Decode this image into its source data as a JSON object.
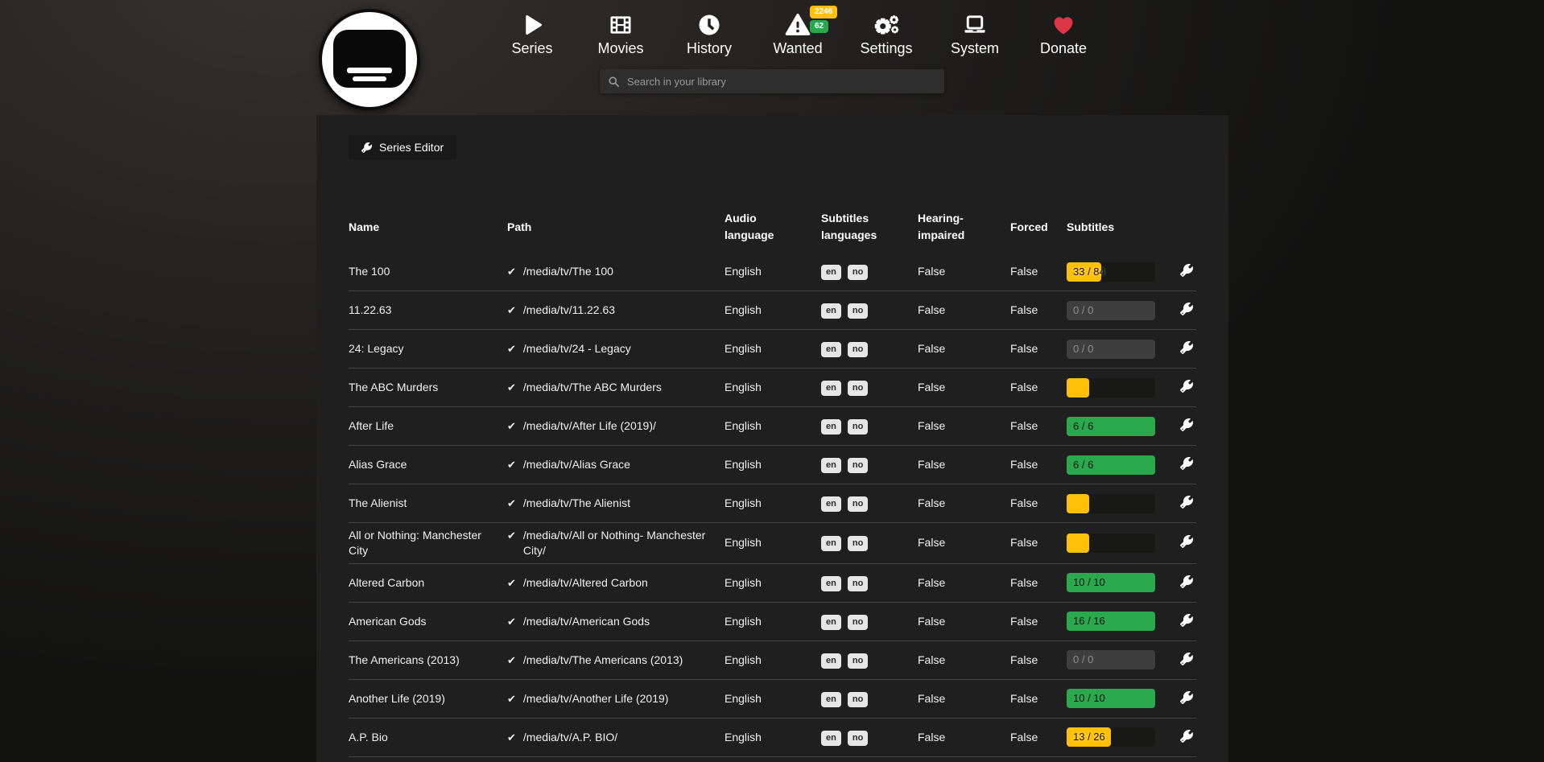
{
  "colors": {
    "warning": "#ffc107",
    "success": "#2aa84e",
    "danger": "#dc3545",
    "disabled_track": "#3e3e3e"
  },
  "nav": {
    "items": [
      {
        "slug": "series",
        "label": "Series",
        "icon": "play-icon"
      },
      {
        "slug": "movies",
        "label": "Movies",
        "icon": "film-icon"
      },
      {
        "slug": "history",
        "label": "History",
        "icon": "clock-icon"
      },
      {
        "slug": "wanted",
        "label": "Wanted",
        "icon": "warning-icon",
        "badges": [
          {
            "value": "2246",
            "color": "#ffc107"
          },
          {
            "value": "62",
            "color": "#2aa84e"
          }
        ]
      },
      {
        "slug": "settings",
        "label": "Settings",
        "icon": "gears-icon"
      },
      {
        "slug": "system",
        "label": "System",
        "icon": "laptop-icon"
      },
      {
        "slug": "donate",
        "label": "Donate",
        "icon": "heart-icon"
      }
    ],
    "search_placeholder": "Search in your library"
  },
  "toolbar": {
    "series_editor_label": "Series Editor"
  },
  "table": {
    "headers": [
      "Name",
      "Path",
      "Audio language",
      "Subtitles languages",
      "Hearing-impaired",
      "Forced",
      "Subtitles",
      ""
    ],
    "rows": [
      {
        "name": "The 100",
        "path": "/media/tv/The 100",
        "audio": "English",
        "subs_langs": [
          "en",
          "no"
        ],
        "hearing_impaired": "False",
        "forced": "False",
        "subtitles": {
          "label": "33 / 84",
          "state": "partial",
          "ratio": 0.39
        }
      },
      {
        "name": "11.22.63",
        "path": "/media/tv/11.22.63",
        "audio": "English",
        "subs_langs": [
          "en",
          "no"
        ],
        "hearing_impaired": "False",
        "forced": "False",
        "subtitles": {
          "label": "0 / 0",
          "state": "disabled",
          "ratio": 1
        }
      },
      {
        "name": "24: Legacy",
        "path": "/media/tv/24 - Legacy",
        "audio": "English",
        "subs_langs": [
          "en",
          "no"
        ],
        "hearing_impaired": "False",
        "forced": "False",
        "subtitles": {
          "label": "0 / 0",
          "state": "disabled",
          "ratio": 1
        }
      },
      {
        "name": "The ABC Murders",
        "path": "/media/tv/The ABC Murders",
        "audio": "English",
        "subs_langs": [
          "en",
          "no"
        ],
        "hearing_impaired": "False",
        "forced": "False",
        "subtitles": {
          "label": "",
          "state": "partial",
          "ratio": 0.25
        }
      },
      {
        "name": "After Life",
        "path": "/media/tv/After Life (2019)/",
        "audio": "English",
        "subs_langs": [
          "en",
          "no"
        ],
        "hearing_impaired": "False",
        "forced": "False",
        "subtitles": {
          "label": "6 / 6",
          "state": "complete",
          "ratio": 1
        }
      },
      {
        "name": "Alias Grace",
        "path": "/media/tv/Alias Grace",
        "audio": "English",
        "subs_langs": [
          "en",
          "no"
        ],
        "hearing_impaired": "False",
        "forced": "False",
        "subtitles": {
          "label": "6 / 6",
          "state": "complete",
          "ratio": 1
        }
      },
      {
        "name": "The Alienist",
        "path": "/media/tv/The Alienist",
        "audio": "English",
        "subs_langs": [
          "en",
          "no"
        ],
        "hearing_impaired": "False",
        "forced": "False",
        "subtitles": {
          "label": "",
          "state": "partial",
          "ratio": 0.25
        }
      },
      {
        "name": "All or Nothing: Manchester City",
        "path": "/media/tv/All or Nothing- Manchester City/",
        "audio": "English",
        "subs_langs": [
          "en",
          "no"
        ],
        "hearing_impaired": "False",
        "forced": "False",
        "subtitles": {
          "label": "",
          "state": "partial",
          "ratio": 0.25
        }
      },
      {
        "name": "Altered Carbon",
        "path": "/media/tv/Altered Carbon",
        "audio": "English",
        "subs_langs": [
          "en",
          "no"
        ],
        "hearing_impaired": "False",
        "forced": "False",
        "subtitles": {
          "label": "10 / 10",
          "state": "complete",
          "ratio": 1
        }
      },
      {
        "name": "American Gods",
        "path": "/media/tv/American Gods",
        "audio": "English",
        "subs_langs": [
          "en",
          "no"
        ],
        "hearing_impaired": "False",
        "forced": "False",
        "subtitles": {
          "label": "16 / 16",
          "state": "complete",
          "ratio": 1
        }
      },
      {
        "name": "The Americans (2013)",
        "path": "/media/tv/The Americans (2013)",
        "audio": "English",
        "subs_langs": [
          "en",
          "no"
        ],
        "hearing_impaired": "False",
        "forced": "False",
        "subtitles": {
          "label": "0 / 0",
          "state": "disabled",
          "ratio": 1
        }
      },
      {
        "name": "Another Life (2019)",
        "path": "/media/tv/Another Life (2019)",
        "audio": "English",
        "subs_langs": [
          "en",
          "no"
        ],
        "hearing_impaired": "False",
        "forced": "False",
        "subtitles": {
          "label": "10 / 10",
          "state": "complete",
          "ratio": 1
        }
      },
      {
        "name": "A.P. Bio",
        "path": "/media/tv/A.P. BIO/",
        "audio": "English",
        "subs_langs": [
          "en",
          "no"
        ],
        "hearing_impaired": "False",
        "forced": "False",
        "subtitles": {
          "label": "13 / 26",
          "state": "partial",
          "ratio": 0.5
        }
      }
    ]
  }
}
